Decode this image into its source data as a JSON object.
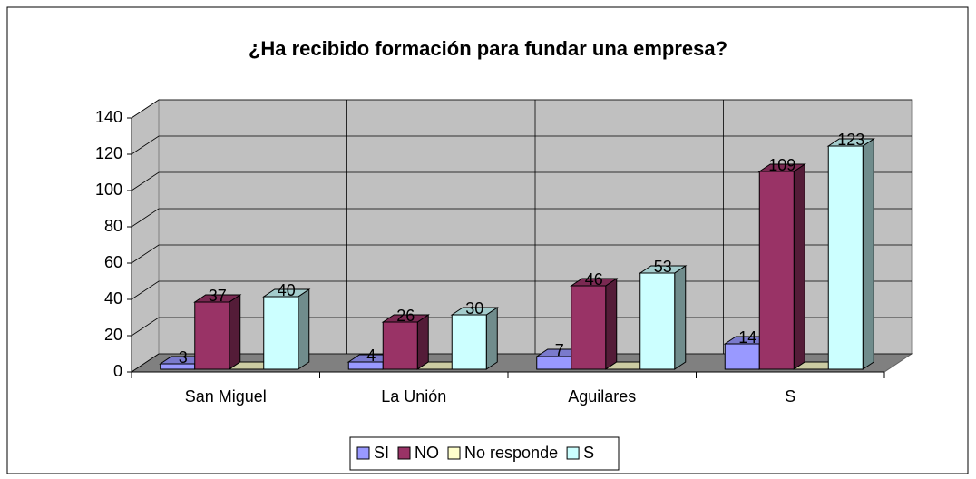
{
  "chart_data": {
    "type": "bar3d",
    "title": "¿Ha recibido formación para fundar una empresa?",
    "categories": [
      "San Miguel",
      "La Unión",
      "Aguilares",
      "S"
    ],
    "series": [
      {
        "name": "SI",
        "color": "#9999ff",
        "values": [
          3,
          4,
          7,
          14
        ],
        "show_labels": true
      },
      {
        "name": "NO",
        "color": "#993366",
        "values": [
          37,
          26,
          46,
          109
        ],
        "show_labels": true
      },
      {
        "name": "No responde",
        "color": "#ffffcc",
        "values": [
          0,
          0,
          0,
          0
        ],
        "show_labels": false
      },
      {
        "name": "S",
        "color": "#ccffff",
        "values": [
          40,
          30,
          53,
          123
        ],
        "show_labels": true
      }
    ],
    "ylim": [
      0,
      140
    ],
    "yticks": [
      0,
      20,
      40,
      60,
      80,
      100,
      120,
      140
    ],
    "grid": true,
    "legend": "bottom"
  }
}
